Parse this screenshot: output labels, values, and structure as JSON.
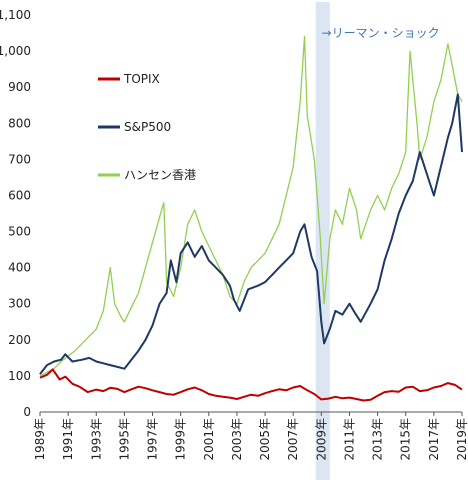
{
  "chart_data": {
    "type": "line",
    "title": "",
    "xlabel": "",
    "ylabel": "",
    "x_range": [
      1989,
      2019
    ],
    "ylim": [
      0,
      1100
    ],
    "y_ticks": [
      0,
      100,
      200,
      300,
      400,
      500,
      600,
      700,
      800,
      900,
      1000,
      1100
    ],
    "y_tick_labels": [
      "0",
      "100",
      "200",
      "300",
      "400",
      "500",
      "600",
      "700",
      "800",
      "900",
      "1,000",
      "1,100"
    ],
    "x_ticks": [
      1989,
      1991,
      1993,
      1995,
      1997,
      1999,
      2001,
      2003,
      2005,
      2007,
      2009,
      2011,
      2013,
      2015,
      2017,
      2019
    ],
    "x_tick_labels": [
      "1989年",
      "1991年",
      "1993年",
      "1995年",
      "1997年",
      "1999年",
      "2001年",
      "2003年",
      "2005年",
      "2007年",
      "2009年",
      "2011年",
      "2013年",
      "2015年",
      "2017年",
      "2019年"
    ],
    "grid": false,
    "legend_position": "left",
    "highlight_band": {
      "x_start": 2008.6,
      "x_end": 2009.6,
      "color": "#dce6f2"
    },
    "annotation": {
      "text": "→リーマン・ショック",
      "x": 2009.3,
      "y": 1050,
      "color": "#4472c4"
    },
    "series": [
      {
        "name": "TOPIX",
        "color": "#c00000",
        "x": [
          1989,
          1989.5,
          1989.9,
          1990.4,
          1990.8,
          1991.3,
          1991.8,
          1992.4,
          1993.0,
          1993.5,
          1994.0,
          1994.5,
          1995.0,
          1995.5,
          1996.0,
          1996.5,
          1997.0,
          1997.5,
          1998.0,
          1998.5,
          1999.0,
          1999.5,
          2000.0,
          2000.5,
          2001.0,
          2001.5,
          2002.0,
          2002.5,
          2003.0,
          2003.5,
          2004.0,
          2004.5,
          2005.0,
          2005.5,
          2006.0,
          2006.5,
          2007.0,
          2007.5,
          2008.0,
          2008.5,
          2009.0,
          2009.5,
          2010.0,
          2010.5,
          2011.0,
          2011.5,
          2012.0,
          2012.5,
          2013.0,
          2013.5,
          2014.0,
          2014.5,
          2015.0,
          2015.5,
          2016.0,
          2016.5,
          2017.0,
          2017.5,
          2018.0,
          2018.5,
          2019.0
        ],
        "values": [
          95,
          103,
          118,
          90,
          98,
          78,
          70,
          55,
          62,
          58,
          67,
          64,
          55,
          63,
          70,
          66,
          60,
          55,
          50,
          48,
          55,
          63,
          68,
          60,
          50,
          45,
          42,
          40,
          36,
          42,
          48,
          45,
          52,
          58,
          63,
          60,
          68,
          72,
          60,
          50,
          35,
          37,
          42,
          38,
          40,
          36,
          32,
          34,
          45,
          55,
          58,
          56,
          68,
          70,
          58,
          60,
          68,
          72,
          80,
          75,
          62
        ]
      },
      {
        "name": "S&P500",
        "color": "#1f3864",
        "x": [
          1989,
          1989.5,
          1990.0,
          1990.5,
          1990.8,
          1991.3,
          1992.0,
          1992.5,
          1993.0,
          1993.5,
          1994.0,
          1994.5,
          1995.0,
          1995.5,
          1996.0,
          1996.5,
          1997.0,
          1997.5,
          1998.0,
          1998.3,
          1998.7,
          1999.0,
          1999.5,
          2000.0,
          2000.5,
          2001.0,
          2001.5,
          2002.0,
          2002.5,
          2002.8,
          2003.2,
          2003.8,
          2004.5,
          2005.0,
          2005.5,
          2006.0,
          2006.5,
          2007.0,
          2007.5,
          2007.8,
          2008.3,
          2008.7,
          2009.0,
          2009.2,
          2009.6,
          2010.0,
          2010.5,
          2011.0,
          2011.3,
          2011.8,
          2012.5,
          2013.0,
          2013.5,
          2014.0,
          2014.5,
          2015.0,
          2015.5,
          2016.0,
          2016.5,
          2017.0,
          2017.5,
          2018.0,
          2018.3,
          2018.7,
          2019.0
        ],
        "values": [
          105,
          130,
          140,
          145,
          160,
          140,
          145,
          150,
          140,
          135,
          130,
          125,
          120,
          145,
          170,
          200,
          240,
          300,
          330,
          420,
          360,
          440,
          470,
          430,
          460,
          420,
          400,
          380,
          350,
          310,
          280,
          340,
          350,
          360,
          380,
          400,
          420,
          440,
          500,
          520,
          430,
          390,
          250,
          190,
          230,
          280,
          270,
          300,
          280,
          250,
          300,
          340,
          420,
          480,
          550,
          600,
          640,
          720,
          660,
          600,
          680,
          760,
          800,
          880,
          720
        ]
      },
      {
        "name": "ハンセン香港",
        "color": "#92d050",
        "x": [
          1989,
          1989.5,
          1990.0,
          1990.5,
          1991.0,
          1991.5,
          1992.0,
          1992.5,
          1993.0,
          1993.5,
          1994.0,
          1994.3,
          1994.8,
          1995.0,
          1995.5,
          1996.0,
          1996.5,
          1997.0,
          1997.5,
          1997.8,
          1998.0,
          1998.5,
          1999.0,
          1999.5,
          2000.0,
          2000.5,
          2001.0,
          2001.5,
          2002.0,
          2002.5,
          2003.0,
          2003.5,
          2004.0,
          2004.5,
          2005.0,
          2005.5,
          2006.0,
          2006.5,
          2007.0,
          2007.5,
          2007.8,
          2008.0,
          2008.5,
          2008.9,
          2009.2,
          2009.6,
          2010.0,
          2010.5,
          2011.0,
          2011.5,
          2011.8,
          2012.5,
          2013.0,
          2013.5,
          2014.0,
          2014.5,
          2015.0,
          2015.3,
          2015.8,
          2016.0,
          2016.5,
          2017.0,
          2017.5,
          2018.0,
          2018.3,
          2018.7,
          2019.0
        ],
        "values": [
          100,
          110,
          120,
          140,
          155,
          170,
          190,
          210,
          230,
          280,
          400,
          300,
          260,
          250,
          290,
          330,
          400,
          470,
          540,
          580,
          360,
          320,
          400,
          520,
          560,
          500,
          460,
          420,
          380,
          320,
          300,
          360,
          400,
          420,
          440,
          480,
          520,
          600,
          680,
          860,
          1040,
          820,
          700,
          500,
          300,
          480,
          560,
          520,
          620,
          560,
          480,
          560,
          600,
          560,
          620,
          660,
          720,
          1000,
          800,
          700,
          760,
          860,
          920,
          1020,
          960,
          880,
          860
        ]
      }
    ]
  }
}
